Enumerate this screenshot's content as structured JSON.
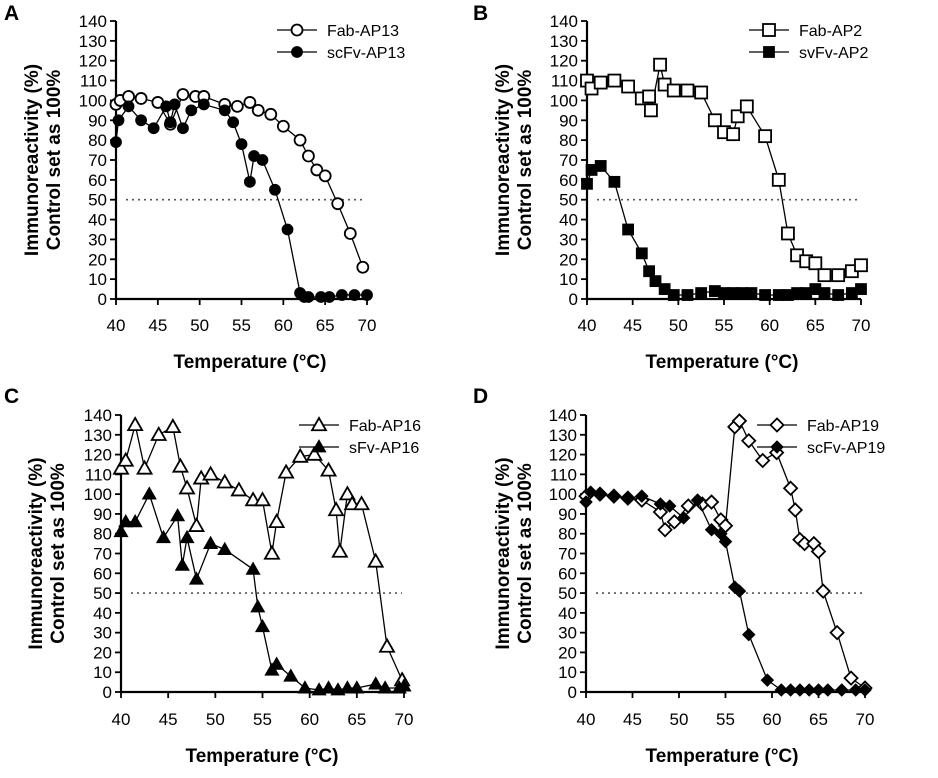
{
  "figure": {
    "x_title": "Temperature (°C)",
    "y_title_line1": "Immunoreactivity (%)",
    "y_title_line2": "Control set as 100%"
  },
  "chart_data": [
    {
      "panel": "A",
      "type": "line",
      "xlim": [
        40,
        70
      ],
      "ylim": [
        0,
        140
      ],
      "xticks": [
        40,
        45,
        50,
        55,
        60,
        65,
        70
      ],
      "yticks": [
        0,
        10,
        20,
        30,
        40,
        50,
        60,
        70,
        80,
        90,
        100,
        110,
        120,
        130,
        140
      ],
      "xlabel": "Temperature (°C)",
      "ylabel": "Immunoreactivity (%) Control set as 100%",
      "reference_line": 50,
      "series": [
        {
          "name": "Fab-AP13",
          "marker": "circle",
          "filled": false,
          "x": [
            40,
            40.5,
            41.5,
            43,
            45,
            46.5,
            48,
            49.5,
            50.5,
            53,
            54.5,
            56,
            57,
            58.5,
            60,
            62,
            63,
            64,
            65,
            66.5,
            68,
            69.5
          ],
          "y": [
            98,
            100,
            102,
            101,
            99,
            88,
            103,
            102,
            102,
            98,
            97,
            99,
            95,
            93,
            87,
            80,
            72,
            65,
            62,
            48,
            33,
            16
          ]
        },
        {
          "name": "scFv-AP13",
          "marker": "circle",
          "filled": true,
          "x": [
            40,
            40.3,
            41.5,
            43,
            44.5,
            46,
            46.5,
            47,
            48,
            49,
            50.5,
            53,
            54,
            55,
            56,
            56.5,
            57.5,
            59,
            60.5,
            62,
            62.5,
            63,
            64.5,
            65.5,
            67,
            68.5,
            70
          ],
          "y": [
            79,
            90,
            97,
            90,
            86,
            97,
            89,
            98,
            86,
            95,
            98,
            95,
            89,
            78,
            59,
            72,
            70,
            55,
            35,
            3,
            1,
            1,
            1,
            1,
            2,
            2,
            2
          ]
        }
      ]
    },
    {
      "panel": "B",
      "type": "line",
      "xlim": [
        40,
        70
      ],
      "ylim": [
        0,
        140
      ],
      "xticks": [
        40,
        45,
        50,
        55,
        60,
        65,
        70
      ],
      "yticks": [
        0,
        10,
        20,
        30,
        40,
        50,
        60,
        70,
        80,
        90,
        100,
        110,
        120,
        130,
        140
      ],
      "xlabel": "Temperature (°C)",
      "ylabel": "Immunoreactivity (%) Control set as 100%",
      "reference_line": 50,
      "series": [
        {
          "name": "Fab-AP2",
          "marker": "square",
          "filled": false,
          "x": [
            40,
            40.5,
            41.5,
            43,
            44.5,
            46,
            46.8,
            47,
            48,
            48.5,
            49.5,
            51,
            52.5,
            54,
            55,
            56,
            56.5,
            57.5,
            59.5,
            61,
            62,
            63,
            64,
            65,
            66,
            67.5,
            69,
            70
          ],
          "y": [
            110,
            106,
            109,
            110,
            107,
            101,
            102,
            95,
            118,
            108,
            105,
            105,
            104,
            90,
            84,
            83,
            92,
            97,
            82,
            60,
            33,
            22,
            19,
            18,
            12,
            12,
            14,
            17
          ]
        },
        {
          "name": "svFv-AP2",
          "marker": "square",
          "filled": true,
          "x": [
            40,
            40.5,
            41.5,
            43,
            44.5,
            46,
            46.8,
            47.5,
            48.5,
            49.5,
            51,
            52.5,
            54,
            55,
            56,
            57,
            58,
            59.5,
            61,
            62,
            63,
            64,
            65,
            66,
            67.5,
            69,
            70
          ],
          "y": [
            58,
            65,
            67,
            59,
            35,
            23,
            14,
            9,
            5,
            2,
            2,
            3,
            4,
            3,
            3,
            3,
            3,
            2,
            2,
            2,
            3,
            3,
            5,
            3,
            2,
            3,
            5
          ]
        }
      ]
    },
    {
      "panel": "C",
      "type": "line",
      "xlim": [
        40,
        70
      ],
      "ylim": [
        0,
        140
      ],
      "xticks": [
        40,
        45,
        50,
        55,
        60,
        65,
        70
      ],
      "yticks": [
        0,
        10,
        20,
        30,
        40,
        50,
        60,
        70,
        80,
        90,
        100,
        110,
        120,
        130,
        140
      ],
      "xlabel": "Temperature (°C)",
      "ylabel": "Immunoreactivity (%) Control set as 100%",
      "reference_line": 50,
      "series": [
        {
          "name": "Fab-AP16",
          "marker": "triangle",
          "filled": false,
          "x": [
            40,
            40.5,
            41.5,
            42.5,
            44,
            45.5,
            46.3,
            47,
            48,
            48.5,
            49.5,
            51,
            52.5,
            54,
            55,
            56,
            56.5,
            57.5,
            59,
            60.5,
            62,
            62.8,
            63.2,
            64,
            64.5,
            65.5,
            67,
            68.2,
            69.8
          ],
          "y": [
            113,
            117,
            135,
            113,
            130,
            134,
            114,
            103,
            84,
            108,
            110,
            106,
            102,
            97,
            97,
            70,
            86,
            111,
            119,
            120,
            112,
            92,
            71,
            100,
            95,
            95,
            66,
            23,
            6
          ]
        },
        {
          "name": "sFv-AP16",
          "marker": "triangle",
          "filled": true,
          "x": [
            40,
            40.5,
            41.5,
            43,
            44.5,
            46,
            46.5,
            47,
            48,
            49.5,
            51,
            54,
            54.5,
            55,
            56,
            56.5,
            58,
            59.5,
            61,
            62,
            63,
            64,
            65,
            67,
            68,
            69.5,
            70
          ],
          "y": [
            81,
            86,
            86,
            100,
            78,
            89,
            64,
            78,
            57,
            75,
            72,
            62,
            43,
            33,
            11,
            14,
            8,
            2,
            1,
            2,
            1,
            2,
            2,
            4,
            2,
            2,
            3
          ]
        }
      ]
    },
    {
      "panel": "D",
      "type": "line",
      "xlim": [
        40,
        70
      ],
      "ylim": [
        0,
        140
      ],
      "xticks": [
        40,
        45,
        50,
        55,
        60,
        65,
        70
      ],
      "yticks": [
        0,
        10,
        20,
        30,
        40,
        50,
        60,
        70,
        80,
        90,
        100,
        110,
        120,
        130,
        140
      ],
      "xlabel": "Temperature (°C)",
      "ylabel": "Immunoreactivity (%) Control set as 100%",
      "reference_line": 50,
      "series": [
        {
          "name": "Fab-AP19",
          "marker": "diamond",
          "filled": false,
          "x": [
            40,
            41.5,
            43,
            44.5,
            46,
            48,
            48.5,
            49.5,
            51,
            52.5,
            53.5,
            54.5,
            55,
            56,
            56.5,
            57.5,
            59,
            60.5,
            62,
            62.5,
            63,
            63.5,
            64.5,
            65,
            65.5,
            67,
            68.5,
            70
          ],
          "y": [
            99,
            100,
            99,
            98,
            97,
            91,
            82,
            86,
            94,
            95,
            96,
            87,
            84,
            134,
            137,
            127,
            117,
            121,
            103,
            92,
            77,
            75,
            75,
            71,
            51,
            30,
            7,
            2
          ]
        },
        {
          "name": "scFv-AP19",
          "marker": "diamond",
          "filled": true,
          "x": [
            40,
            40.5,
            41.5,
            43,
            44.5,
            46,
            48,
            49,
            50.5,
            52,
            53.5,
            54.5,
            55,
            56,
            56.5,
            57.5,
            59.5,
            61,
            62,
            63,
            64,
            65,
            66,
            67.5,
            69,
            70
          ],
          "y": [
            96,
            101,
            100,
            99,
            98,
            99,
            95,
            94,
            88,
            97,
            82,
            80,
            76,
            53,
            51,
            29,
            6,
            1,
            1,
            1,
            1,
            1,
            1,
            1,
            1,
            1
          ]
        }
      ]
    }
  ]
}
